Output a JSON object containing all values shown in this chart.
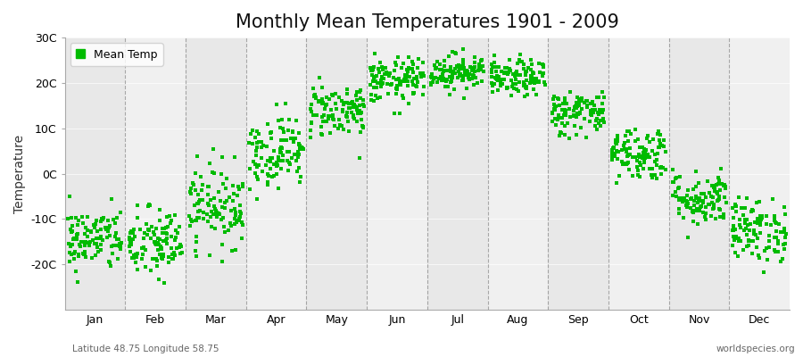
{
  "title": "Monthly Mean Temperatures 1901 - 2009",
  "ylabel": "Temperature",
  "ylim": [
    -30,
    30
  ],
  "yticks": [
    -20,
    -10,
    0,
    10,
    20,
    30
  ],
  "ytick_labels": [
    "-20C",
    "-10C",
    "0C",
    "10C",
    "20C",
    "30C"
  ],
  "months": [
    "Jan",
    "Feb",
    "Mar",
    "Apr",
    "May",
    "Jun",
    "Jul",
    "Aug",
    "Sep",
    "Oct",
    "Nov",
    "Dec"
  ],
  "month_means": [
    -14.5,
    -15.5,
    -7.0,
    5.0,
    14.0,
    20.5,
    22.5,
    21.0,
    13.5,
    4.5,
    -5.5,
    -12.5
  ],
  "month_stds": [
    3.5,
    4.0,
    4.5,
    4.0,
    3.0,
    2.5,
    2.0,
    2.0,
    2.5,
    3.0,
    3.0,
    3.5
  ],
  "n_years": 109,
  "dot_color": "#00bb00",
  "dot_size": 5,
  "background_color": "#ffffff",
  "plot_bg_color": "#f0f0f0",
  "band_color_odd": "#e8e8e8",
  "band_color_even": "#f0f0f0",
  "grid_color": "#888888",
  "title_fontsize": 15,
  "label_fontsize": 10,
  "tick_fontsize": 9,
  "legend_label": "Mean Temp",
  "subtitle_left": "Latitude 48.75 Longitude 58.75",
  "subtitle_right": "worldspecies.org"
}
